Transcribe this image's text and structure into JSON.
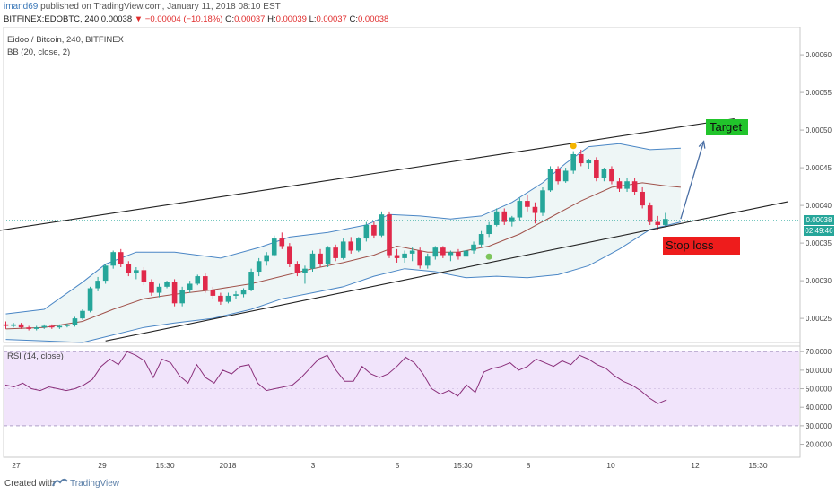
{
  "header": {
    "user": "imand69",
    "published_text": "published on TradingView.com, January 11, 2018 08:10 EST",
    "symbol": "BITFINEX:EDOBTC, 240",
    "last": "0.00038",
    "change": "▼ −0.00004 (−10.18%)",
    "o_label": "O:",
    "o_value": "0.00037",
    "h_label": "H:",
    "h_value": "0.00039",
    "l_label": "L:",
    "l_value": "0.00037",
    "c_label": "C:",
    "c_value": "0.00038"
  },
  "legend": {
    "pair": "Eidoo / Bitcoin, 240, BITFINEX",
    "bb": "BB (20, close, 2)",
    "rsi": "RSI (14, close)"
  },
  "annotations": {
    "target": "Target",
    "stop_loss": "Stop loss"
  },
  "price_tags": {
    "current": "0.00038",
    "countdown": "02:49:46"
  },
  "footer": {
    "created_with": "Created with",
    "brand": "TradingView"
  },
  "colors": {
    "up": "#26a69a",
    "down": "#e0294a",
    "bb_band": "#4a86c5",
    "bb_basis": "#a0524b",
    "bb_fill": "#eef6f6",
    "rsi_line": "#8a2f7a",
    "rsi_fill": "#f1e4fb",
    "trendline": "#222222",
    "arrow": "#4a6fa5",
    "target_bg": "#21c42b",
    "stop_bg": "#ee1c1c",
    "marker_top": "#f4b400",
    "marker_low": "#7dc55b"
  },
  "chart_data": [
    {
      "type": "candlestick",
      "title": "Eidoo / Bitcoin, 240, BITFINEX",
      "x_tick_labels": [
        "27",
        "29",
        "15:30",
        "2018",
        "3",
        "5",
        "15:30",
        "8",
        "10",
        "12",
        "15:30"
      ],
      "y_tick_labels": [
        "0.00060",
        "0.00055",
        "0.00050",
        "0.00045",
        "0.00040",
        "0.00035",
        "0.00030",
        "0.00025"
      ],
      "ylim": [
        0.000218,
        0.000637
      ],
      "ohlc": [
        [
          0.000242,
          0.000246,
          0.000236,
          0.00024
        ],
        [
          0.00024,
          0.000244,
          0.000238,
          0.000242
        ],
        [
          0.000242,
          0.000244,
          0.000236,
          0.000238
        ],
        [
          0.000238,
          0.00024,
          0.000234,
          0.000236
        ],
        [
          0.000236,
          0.00024,
          0.000234,
          0.000238
        ],
        [
          0.000238,
          0.000242,
          0.000236,
          0.00024
        ],
        [
          0.00024,
          0.000242,
          0.000236,
          0.000238
        ],
        [
          0.000238,
          0.000242,
          0.000236,
          0.00024
        ],
        [
          0.00024,
          0.000243,
          0.000238,
          0.000241
        ],
        [
          0.000241,
          0.000252,
          0.000239,
          0.00025
        ],
        [
          0.00025,
          0.000262,
          0.000248,
          0.00026
        ],
        [
          0.00026,
          0.000292,
          0.000258,
          0.00029
        ],
        [
          0.00029,
          0.000305,
          0.000286,
          0.0003
        ],
        [
          0.0003,
          0.000322,
          0.000296,
          0.00032
        ],
        [
          0.00032,
          0.00034,
          0.000316,
          0.000338
        ],
        [
          0.000338,
          0.000342,
          0.000318,
          0.000322
        ],
        [
          0.000322,
          0.000326,
          0.000306,
          0.00031
        ],
        [
          0.00031,
          0.000318,
          0.000302,
          0.000314
        ],
        [
          0.000314,
          0.000318,
          0.000294,
          0.000298
        ],
        [
          0.000298,
          0.000302,
          0.00028,
          0.000284
        ],
        [
          0.000284,
          0.000296,
          0.000278,
          0.000292
        ],
        [
          0.000292,
          0.0003,
          0.00029,
          0.000298
        ],
        [
          0.000298,
          0.000302,
          0.000266,
          0.00027
        ],
        [
          0.00027,
          0.000292,
          0.000266,
          0.000288
        ],
        [
          0.000288,
          0.0003,
          0.000284,
          0.000296
        ],
        [
          0.000296,
          0.000308,
          0.000294,
          0.000306
        ],
        [
          0.000306,
          0.00031,
          0.000284,
          0.000288
        ],
        [
          0.000288,
          0.000292,
          0.000276,
          0.00028
        ],
        [
          0.00028,
          0.000284,
          0.000268,
          0.000272
        ],
        [
          0.000272,
          0.000284,
          0.00027,
          0.00028
        ],
        [
          0.00028,
          0.000286,
          0.000276,
          0.000282
        ],
        [
          0.000282,
          0.00029,
          0.000278,
          0.000288
        ],
        [
          0.000288,
          0.000316,
          0.000286,
          0.000312
        ],
        [
          0.000312,
          0.00033,
          0.000306,
          0.000326
        ],
        [
          0.000326,
          0.000338,
          0.00032,
          0.000334
        ],
        [
          0.000334,
          0.00036,
          0.000332,
          0.000356
        ],
        [
          0.000356,
          0.000364,
          0.000342,
          0.000346
        ],
        [
          0.000346,
          0.00035,
          0.000318,
          0.000322
        ],
        [
          0.000322,
          0.000326,
          0.000306,
          0.00031
        ],
        [
          0.00031,
          0.00032,
          0.000296,
          0.000316
        ],
        [
          0.000316,
          0.00034,
          0.000312,
          0.000336
        ],
        [
          0.000336,
          0.000342,
          0.000318,
          0.000322
        ],
        [
          0.000322,
          0.000346,
          0.000318,
          0.000344
        ],
        [
          0.000344,
          0.000348,
          0.000326,
          0.00033
        ],
        [
          0.00033,
          0.000356,
          0.000328,
          0.000352
        ],
        [
          0.000352,
          0.000358,
          0.000336,
          0.00034
        ],
        [
          0.00034,
          0.000358,
          0.000338,
          0.000356
        ],
        [
          0.000356,
          0.000378,
          0.000352,
          0.000374
        ],
        [
          0.000374,
          0.000378,
          0.000356,
          0.00036
        ],
        [
          0.00036,
          0.000392,
          0.000358,
          0.000388
        ],
        [
          0.000388,
          0.000392,
          0.00033,
          0.000334
        ],
        [
          0.000334,
          0.000342,
          0.000324,
          0.00033
        ],
        [
          0.00033,
          0.00034,
          0.000324,
          0.000336
        ],
        [
          0.000336,
          0.000344,
          0.000326,
          0.00034
        ],
        [
          0.00034,
          0.000344,
          0.000316,
          0.00032
        ],
        [
          0.00032,
          0.000336,
          0.000316,
          0.000332
        ],
        [
          0.000332,
          0.000346,
          0.000328,
          0.000344
        ],
        [
          0.000344,
          0.000346,
          0.00033,
          0.000334
        ],
        [
          0.000334,
          0.00034,
          0.000326,
          0.000338
        ],
        [
          0.000338,
          0.000342,
          0.000328,
          0.000332
        ],
        [
          0.000332,
          0.000342,
          0.000328,
          0.00034
        ],
        [
          0.00034,
          0.000352,
          0.000336,
          0.000348
        ],
        [
          0.000348,
          0.000366,
          0.000344,
          0.000362
        ],
        [
          0.000362,
          0.000378,
          0.000358,
          0.000374
        ],
        [
          0.000374,
          0.000396,
          0.000372,
          0.000392
        ],
        [
          0.000392,
          0.000396,
          0.000374,
          0.000378
        ],
        [
          0.000378,
          0.000386,
          0.000372,
          0.000384
        ],
        [
          0.000384,
          0.00041,
          0.00038,
          0.000406
        ],
        [
          0.000406,
          0.000414,
          0.000392,
          0.000398
        ],
        [
          0.000398,
          0.000404,
          0.000376,
          0.00039
        ],
        [
          0.00039,
          0.000424,
          0.000386,
          0.00042
        ],
        [
          0.00042,
          0.000452,
          0.000418,
          0.000448
        ],
        [
          0.000448,
          0.000452,
          0.000428,
          0.000432
        ],
        [
          0.000432,
          0.00045,
          0.00043,
          0.000446
        ],
        [
          0.000446,
          0.000472,
          0.000442,
          0.000468
        ],
        [
          0.000468,
          0.000474,
          0.000452,
          0.000456
        ],
        [
          0.000456,
          0.000462,
          0.000448,
          0.00046
        ],
        [
          0.00046,
          0.000464,
          0.000432,
          0.000436
        ],
        [
          0.000436,
          0.00045,
          0.000432,
          0.000448
        ],
        [
          0.000448,
          0.000452,
          0.000428,
          0.000432
        ],
        [
          0.000432,
          0.000436,
          0.000418,
          0.000422
        ],
        [
          0.000422,
          0.000436,
          0.000418,
          0.000432
        ],
        [
          0.000432,
          0.000436,
          0.000414,
          0.000418
        ],
        [
          0.000418,
          0.000424,
          0.000396,
          0.0004
        ],
        [
          0.0004,
          0.000404,
          0.000374,
          0.000378
        ],
        [
          0.000378,
          0.000386,
          0.000368,
          0.000374
        ],
        [
          0.000374,
          0.00039,
          0.000372,
          0.000382
        ]
      ],
      "bb_upper": [
        [
          0,
          0.000256
        ],
        [
          5,
          0.000262
        ],
        [
          10,
          0.000298
        ],
        [
          13,
          0.000322
        ],
        [
          17,
          0.000338
        ],
        [
          22,
          0.000338
        ],
        [
          28,
          0.00033
        ],
        [
          33,
          0.000344
        ],
        [
          37,
          0.000358
        ],
        [
          42,
          0.000364
        ],
        [
          47,
          0.000374
        ],
        [
          50,
          0.000388
        ],
        [
          54,
          0.000386
        ],
        [
          58,
          0.000382
        ],
        [
          62,
          0.000386
        ],
        [
          66,
          0.000404
        ],
        [
          70,
          0.00043
        ],
        [
          73,
          0.000456
        ],
        [
          76,
          0.000478
        ],
        [
          80,
          0.000482
        ],
        [
          84,
          0.000474
        ],
        [
          88,
          0.000476
        ]
      ],
      "bb_basis": [
        [
          0,
          0.000236
        ],
        [
          5,
          0.000238
        ],
        [
          10,
          0.000246
        ],
        [
          14,
          0.000262
        ],
        [
          18,
          0.000276
        ],
        [
          22,
          0.000282
        ],
        [
          27,
          0.000288
        ],
        [
          32,
          0.000296
        ],
        [
          36,
          0.000306
        ],
        [
          40,
          0.000316
        ],
        [
          44,
          0.000324
        ],
        [
          48,
          0.000334
        ],
        [
          51,
          0.000346
        ],
        [
          55,
          0.000338
        ],
        [
          59,
          0.000338
        ],
        [
          63,
          0.000346
        ],
        [
          67,
          0.000362
        ],
        [
          71,
          0.000384
        ],
        [
          75,
          0.000406
        ],
        [
          79,
          0.000424
        ],
        [
          83,
          0.00043
        ],
        [
          86,
          0.000426
        ],
        [
          88,
          0.000424
        ]
      ],
      "bb_lower": [
        [
          0,
          0.000222
        ],
        [
          5,
          0.00022
        ],
        [
          10,
          0.000218
        ],
        [
          14,
          0.000228
        ],
        [
          18,
          0.000238
        ],
        [
          22,
          0.000244
        ],
        [
          27,
          0.00025
        ],
        [
          32,
          0.000262
        ],
        [
          36,
          0.000276
        ],
        [
          40,
          0.000284
        ],
        [
          44,
          0.000292
        ],
        [
          48,
          0.000306
        ],
        [
          52,
          0.000316
        ],
        [
          56,
          0.000312
        ],
        [
          60,
          0.000304
        ],
        [
          64,
          0.000306
        ],
        [
          68,
          0.000304
        ],
        [
          72,
          0.000308
        ],
        [
          76,
          0.00032
        ],
        [
          80,
          0.000342
        ],
        [
          84,
          0.000368
        ],
        [
          88,
          0.000378
        ]
      ],
      "trendlines": [
        {
          "name": "upper channel",
          "from": [
            -2,
            0.000365
          ],
          "to": [
            95,
            0.000515
          ]
        },
        {
          "name": "lower support",
          "from": [
            13,
            0.00022
          ],
          "to": [
            102,
            0.000405
          ]
        }
      ],
      "projection_arrow": {
        "from": [
          88,
          0.000382
        ],
        "to": [
          91,
          0.000485
        ]
      },
      "markers": [
        {
          "name": "top",
          "at": [
            74,
            0.000479
          ]
        },
        {
          "name": "support touch",
          "at": [
            63,
            0.000332
          ]
        }
      ],
      "last_price": 0.00038
    },
    {
      "type": "line",
      "title": "RSI (14, close)",
      "ylim": [
        13,
        73
      ],
      "y_tick_labels": [
        "70.0000",
        "60.0000",
        "50.0000",
        "40.0000",
        "30.0000",
        "20.0000"
      ],
      "bands": [
        30,
        70
      ],
      "values": [
        [
          0,
          52
        ],
        [
          2,
          51
        ],
        [
          4,
          53
        ],
        [
          6,
          50
        ],
        [
          8,
          49
        ],
        [
          10,
          51
        ],
        [
          12,
          50
        ],
        [
          14,
          49
        ],
        [
          16,
          50
        ],
        [
          18,
          52
        ],
        [
          20,
          55
        ],
        [
          22,
          62
        ],
        [
          24,
          66
        ],
        [
          26,
          63
        ],
        [
          28,
          70
        ],
        [
          30,
          68
        ],
        [
          32,
          65
        ],
        [
          34,
          56
        ],
        [
          36,
          66
        ],
        [
          38,
          64
        ],
        [
          40,
          57
        ],
        [
          42,
          53
        ],
        [
          44,
          63
        ],
        [
          46,
          56
        ],
        [
          48,
          53
        ],
        [
          50,
          60
        ],
        [
          52,
          58
        ],
        [
          54,
          62
        ],
        [
          56,
          63
        ],
        [
          58,
          53
        ],
        [
          60,
          49
        ],
        [
          62,
          50
        ],
        [
          64,
          51
        ],
        [
          66,
          52
        ],
        [
          68,
          56
        ],
        [
          70,
          61
        ],
        [
          72,
          66
        ],
        [
          74,
          68
        ],
        [
          76,
          60
        ],
        [
          78,
          54
        ],
        [
          80,
          54
        ],
        [
          82,
          62
        ],
        [
          84,
          58
        ],
        [
          86,
          56
        ],
        [
          88,
          58
        ],
        [
          90,
          62
        ],
        [
          92,
          67
        ],
        [
          94,
          64
        ],
        [
          96,
          58
        ],
        [
          98,
          50
        ],
        [
          100,
          47
        ],
        [
          102,
          49
        ],
        [
          104,
          46
        ],
        [
          106,
          52
        ],
        [
          108,
          48
        ],
        [
          110,
          59
        ],
        [
          112,
          61
        ],
        [
          114,
          62
        ],
        [
          116,
          64
        ],
        [
          118,
          60
        ],
        [
          120,
          62
        ],
        [
          122,
          66
        ],
        [
          124,
          64
        ],
        [
          126,
          62
        ],
        [
          128,
          65
        ],
        [
          130,
          63
        ],
        [
          132,
          68
        ],
        [
          134,
          66
        ],
        [
          136,
          63
        ],
        [
          138,
          61
        ],
        [
          140,
          57
        ],
        [
          142,
          54
        ],
        [
          144,
          52
        ],
        [
          146,
          49
        ],
        [
          148,
          45
        ],
        [
          150,
          42
        ],
        [
          152,
          44
        ]
      ]
    }
  ]
}
